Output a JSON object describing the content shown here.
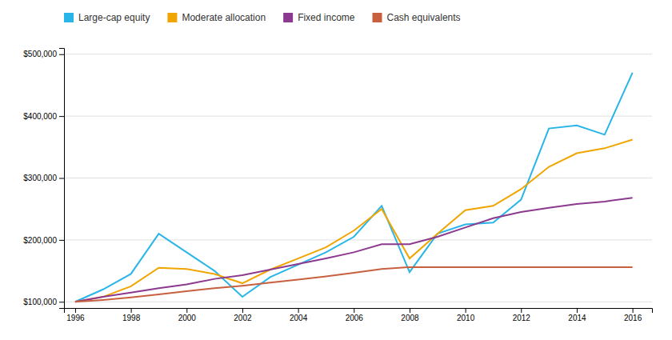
{
  "chart_data": {
    "type": "line",
    "x": [
      1996,
      1997,
      1998,
      1999,
      2000,
      2001,
      2002,
      2003,
      2004,
      2005,
      2006,
      2007,
      2008,
      2009,
      2010,
      2011,
      2012,
      2013,
      2014,
      2015,
      2016
    ],
    "series": [
      {
        "name": "Large-cap equity",
        "color": "#29B5E8",
        "values": [
          100000,
          120000,
          145000,
          210000,
          180000,
          150000,
          108000,
          140000,
          160000,
          180000,
          205000,
          255000,
          148000,
          210000,
          225000,
          228000,
          265000,
          380000,
          385000,
          370000,
          470000
        ]
      },
      {
        "name": "Moderate allocation",
        "color": "#F0A500",
        "values": [
          100000,
          108000,
          125000,
          155000,
          153000,
          145000,
          130000,
          152000,
          170000,
          188000,
          215000,
          250000,
          170000,
          210000,
          248000,
          255000,
          282000,
          318000,
          340000,
          348000,
          362000
        ]
      },
      {
        "name": "Fixed income",
        "color": "#8B3A8F",
        "values": [
          100000,
          108000,
          115000,
          122000,
          128000,
          137000,
          143000,
          152000,
          161000,
          170000,
          180000,
          193000,
          193000,
          205000,
          220000,
          235000,
          245000,
          252000,
          258000,
          262000,
          268000
        ]
      },
      {
        "name": "Cash equivalents",
        "color": "#C86040",
        "values": [
          100000,
          103000,
          107000,
          112000,
          117000,
          122000,
          126000,
          131000,
          136000,
          141000,
          147000,
          153000,
          156000,
          156000,
          156000,
          156000,
          156000,
          156000,
          156000,
          156000,
          156000
        ]
      }
    ],
    "xlim": [
      1995.6,
      2016.7
    ],
    "xticks": [
      1996,
      1998,
      2000,
      2002,
      2004,
      2006,
      2008,
      2010,
      2012,
      2014,
      2016
    ],
    "ylim": [
      90000,
      510000
    ],
    "yticks": [
      {
        "value": 100000,
        "label": "$100,000"
      },
      {
        "value": 200000,
        "label": "$200,000"
      },
      {
        "value": 300000,
        "label": "$300,000"
      },
      {
        "value": 400000,
        "label": "$400,000"
      },
      {
        "value": 500000,
        "label": "$500,000"
      }
    ],
    "grid": true,
    "legend": "top"
  }
}
